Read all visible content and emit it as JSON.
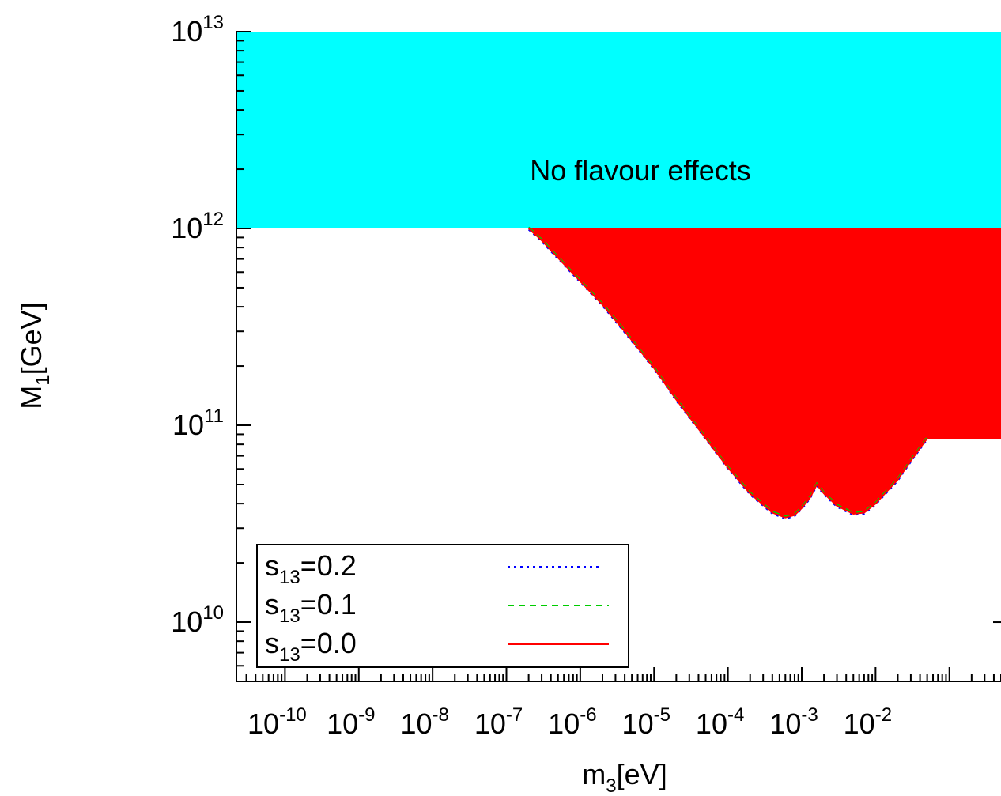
{
  "chart_data": {
    "type": "area",
    "x_axis": {
      "label_main": "m",
      "label_sub": "3",
      "label_rest": "[eV]",
      "scale": "log",
      "range": [
        2.2e-11,
        0.5
      ],
      "ticks": [
        {
          "base": "10",
          "exp": "-10"
        },
        {
          "base": "10",
          "exp": "-9"
        },
        {
          "base": "10",
          "exp": "-8"
        },
        {
          "base": "10",
          "exp": "-7"
        },
        {
          "base": "10",
          "exp": "-6"
        },
        {
          "base": "10",
          "exp": "-5"
        },
        {
          "base": "10",
          "exp": "-4"
        },
        {
          "base": "10",
          "exp": "-3"
        },
        {
          "base": "10",
          "exp": "-2"
        }
      ]
    },
    "y_axis": {
      "label_main": "M",
      "label_sub": "1",
      "label_rest": "[GeV]",
      "scale": "log",
      "range": [
        5000000000.0,
        10000000000000.0
      ],
      "ticks": [
        {
          "base": "10",
          "exp": "10"
        },
        {
          "base": "10",
          "exp": "11"
        },
        {
          "base": "10",
          "exp": "12"
        },
        {
          "base": "10",
          "exp": "13"
        }
      ]
    },
    "regions": [
      {
        "name": "No flavour effects",
        "color": "#00ffff",
        "x_range": [
          2.2e-11,
          0.5
        ],
        "y_range": [
          1000000000000.0,
          10000000000000.0
        ]
      }
    ],
    "annotation": "No flavour effects",
    "boundary": {
      "x": [
        2e-07,
        3e-07,
        6e-07,
        1e-06,
        2e-06,
        4e-06,
        1e-05,
        2e-05,
        5e-05,
        0.0001,
        0.0002,
        0.0004,
        0.0006,
        0.0008,
        0.001,
        0.0013,
        0.0016,
        0.002,
        0.003,
        0.005,
        0.007,
        0.01,
        0.02,
        0.03,
        0.049
      ],
      "y": [
        1000000000000.0,
        870000000000.0,
        660000000000.0,
        540000000000.0,
        410000000000.0,
        300000000000.0,
        195000000000.0,
        135000000000.0,
        86000000000.0,
        61000000000.0,
        45000000000.0,
        36000000000.0,
        34000000000.0,
        35000000000.0,
        38000000000.0,
        43000000000.0,
        50000000000.0,
        45000000000.0,
        39000000000.0,
        35500000000.0,
        36000000000.0,
        40000000000.0,
        53000000000.0,
        66000000000.0,
        85000000000.0
      ]
    },
    "series": [
      {
        "name": "s13=0.2",
        "label_main": "s",
        "label_sub": "13",
        "label_rest": "=0.2",
        "color": "#0000ff",
        "style": "dotted"
      },
      {
        "name": "s13=0.1",
        "label_main": "s",
        "label_sub": "13",
        "label_rest": "=0.1",
        "color": "#00cc00",
        "style": "dashed"
      },
      {
        "name": "s13=0.0",
        "label_main": "s",
        "label_sub": "13",
        "label_rest": "=0.0",
        "color": "#ff0000",
        "style": "solid",
        "fill": "#ff0000"
      }
    ],
    "legend_position": "bottom-left",
    "grid": false
  }
}
